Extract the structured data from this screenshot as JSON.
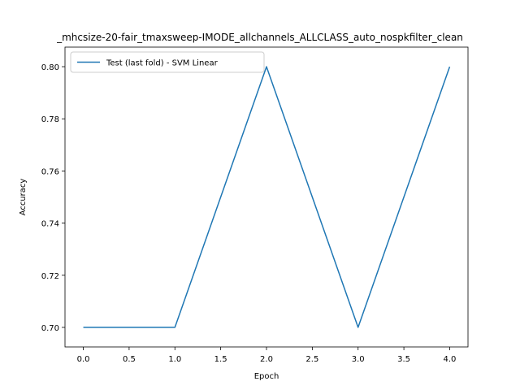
{
  "chart_data": {
    "type": "line",
    "title": "_mhcsize-20-fair_tmaxsweep-IMODE_allchannels_ALLCLASS_auto_nospkfilter_clean",
    "xlabel": "Epoch",
    "ylabel": "Accuracy",
    "xlim": [
      -0.2,
      4.2
    ],
    "ylim": [
      0.6925,
      0.8075
    ],
    "xticks": [
      0.0,
      0.5,
      1.0,
      1.5,
      2.0,
      2.5,
      3.0,
      3.5,
      4.0
    ],
    "xtick_labels": [
      "0.0",
      "0.5",
      "1.0",
      "1.5",
      "2.0",
      "2.5",
      "3.0",
      "3.5",
      "4.0"
    ],
    "yticks": [
      0.7,
      0.72,
      0.74,
      0.76,
      0.78,
      0.8
    ],
    "ytick_labels": [
      "0.70",
      "0.72",
      "0.74",
      "0.76",
      "0.78",
      "0.80"
    ],
    "grid": false,
    "legend_position": "upper-left",
    "series": [
      {
        "name": "Test (last fold) - SVM Linear",
        "color": "#1f77b4",
        "x": [
          0,
          1,
          2,
          3,
          4
        ],
        "y": [
          0.7,
          0.7,
          0.8,
          0.7,
          0.8
        ]
      }
    ]
  }
}
